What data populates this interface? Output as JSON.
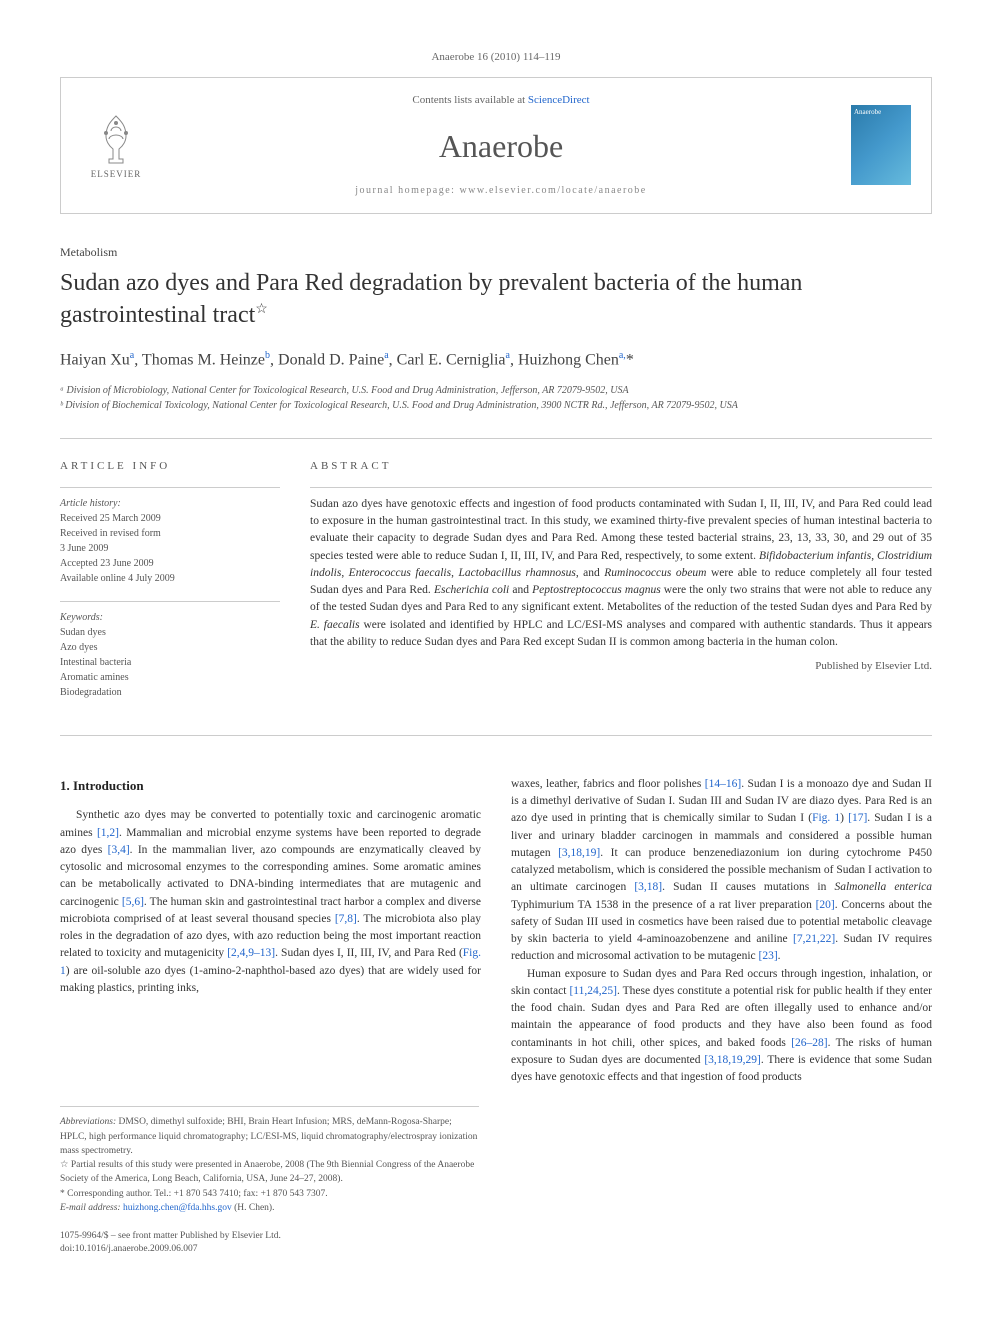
{
  "journal_ref": "Anaerobe 16 (2010) 114–119",
  "header": {
    "contents_prefix": "Contents lists available at ",
    "contents_link": "ScienceDirect",
    "journal_name": "Anaerobe",
    "homepage": "journal homepage: www.elsevier.com/locate/anaerobe",
    "elsevier_label": "ELSEVIER",
    "cover_label": "Anaerobe"
  },
  "section_label": "Metabolism",
  "title": "Sudan azo dyes and Para Red degradation by prevalent bacteria of the human gastrointestinal tract",
  "title_note": "☆",
  "authors_html": "Haiyan Xu<sup>a</sup>, Thomas M. Heinze<sup>b</sup>, Donald D. Paine<sup>a</sup>, Carl E. Cerniglia<sup>a</sup>, Huizhong Chen<sup>a,</sup>*",
  "affiliations": [
    "ᵃ Division of Microbiology, National Center for Toxicological Research, U.S. Food and Drug Administration, Jefferson, AR 72079-9502, USA",
    "ᵇ Division of Biochemical Toxicology, National Center for Toxicological Research, U.S. Food and Drug Administration, 3900 NCTR Rd., Jefferson, AR 72079-9502, USA"
  ],
  "info": {
    "heading": "ARTICLE INFO",
    "history_label": "Article history:",
    "history": [
      "Received 25 March 2009",
      "Received in revised form",
      "3 June 2009",
      "Accepted 23 June 2009",
      "Available online 4 July 2009"
    ],
    "keywords_label": "Keywords:",
    "keywords": [
      "Sudan dyes",
      "Azo dyes",
      "Intestinal bacteria",
      "Aromatic amines",
      "Biodegradation"
    ]
  },
  "abstract": {
    "heading": "ABSTRACT",
    "text": "Sudan azo dyes have genotoxic effects and ingestion of food products contaminated with Sudan I, II, III, IV, and Para Red could lead to exposure in the human gastrointestinal tract. In this study, we examined thirty-five prevalent species of human intestinal bacteria to evaluate their capacity to degrade Sudan dyes and Para Red. Among these tested bacterial strains, 23, 13, 33, 30, and 29 out of 35 species tested were able to reduce Sudan I, II, III, IV, and Para Red, respectively, to some extent. Bifidobacterium infantis, Clostridium indolis, Enterococcus faecalis, Lactobacillus rhamnosus, and Ruminococcus obeum were able to reduce completely all four tested Sudan dyes and Para Red. Escherichia coli and Peptostreptococcus magnus were the only two strains that were not able to reduce any of the tested Sudan dyes and Para Red to any significant extent. Metabolites of the reduction of the tested Sudan dyes and Para Red by E. faecalis were isolated and identified by HPLC and LC/ESI-MS analyses and compared with authentic standards. Thus it appears that the ability to reduce Sudan dyes and Para Red except Sudan II is common among bacteria in the human colon.",
    "publisher": "Published by Elsevier Ltd."
  },
  "body": {
    "heading": "1. Introduction",
    "col1": "Synthetic azo dyes may be converted to potentially toxic and carcinogenic aromatic amines [1,2]. Mammalian and microbial enzyme systems have been reported to degrade azo dyes [3,4]. In the mammalian liver, azo compounds are enzymatically cleaved by cytosolic and microsomal enzymes to the corresponding amines. Some aromatic amines can be metabolically activated to DNA-binding intermediates that are mutagenic and carcinogenic [5,6]. The human skin and gastrointestinal tract harbor a complex and diverse microbiota comprised of at least several thousand species [7,8]. The microbiota also play roles in the degradation of azo dyes, with azo reduction being the most important reaction related to toxicity and mutagenicity [2,4,9–13]. Sudan dyes I, II, III, IV, and Para Red (Fig. 1) are oil-soluble azo dyes (1-amino-2-naphthol-based azo dyes) that are widely used for making plastics, printing inks,",
    "col2_p1": "waxes, leather, fabrics and floor polishes [14–16]. Sudan I is a monoazo dye and Sudan II is a dimethyl derivative of Sudan I. Sudan III and Sudan IV are diazo dyes. Para Red is an azo dye used in printing that is chemically similar to Sudan I (Fig. 1) [17]. Sudan I is a liver and urinary bladder carcinogen in mammals and considered a possible human mutagen [3,18,19]. It can produce benzenediazonium ion during cytochrome P450 catalyzed metabolism, which is considered the possible mechanism of Sudan I activation to an ultimate carcinogen [3,18]. Sudan II causes mutations in Salmonella enterica Typhimurium TA 1538 in the presence of a rat liver preparation [20]. Concerns about the safety of Sudan III used in cosmetics have been raised due to potential metabolic cleavage by skin bacteria to yield 4-aminoazobenzene and aniline [7,21,22]. Sudan IV requires reduction and microsomal activation to be mutagenic [23].",
    "col2_p2": "Human exposure to Sudan dyes and Para Red occurs through ingestion, inhalation, or skin contact [11,24,25]. These dyes constitute a potential risk for public health if they enter the food chain. Sudan dyes and Para Red are often illegally used to enhance and/or maintain the appearance of food products and they have also been found as food contaminants in hot chili, other spices, and baked foods [26–28]. The risks of human exposure to Sudan dyes are documented [3,18,19,29]. There is evidence that some Sudan dyes have genotoxic effects and that ingestion of food products"
  },
  "footnotes": {
    "abbrev_label": "Abbreviations:",
    "abbrev": " DMSO, dimethyl sulfoxide; BHI, Brain Heart Infusion; MRS, deMann-Rogosa-Sharpe; HPLC, high performance liquid chromatography; LC/ESI-MS, liquid chromatography/electrospray ionization mass spectrometry.",
    "star": "☆ Partial results of this study were presented in Anaerobe, 2008 (The 9th Biennial Congress of the Anaerobe Society of the America, Long Beach, California, USA, June 24–27, 2008).",
    "corr": "* Corresponding author. Tel.: +1 870 543 7410; fax: +1 870 543 7307.",
    "email_label": "E-mail address:",
    "email": "huizhong.chen@fda.hhs.gov",
    "email_suffix": " (H. Chen)."
  },
  "bottom": {
    "line1": "1075-9964/$ – see front matter Published by Elsevier Ltd.",
    "line2": "doi:10.1016/j.anaerobe.2009.06.007"
  },
  "colors": {
    "link": "#2266cc",
    "text": "#333333",
    "muted": "#666666",
    "border": "#cccccc",
    "cover_grad1": "#2a7aaa",
    "cover_grad2": "#66bbdd"
  }
}
